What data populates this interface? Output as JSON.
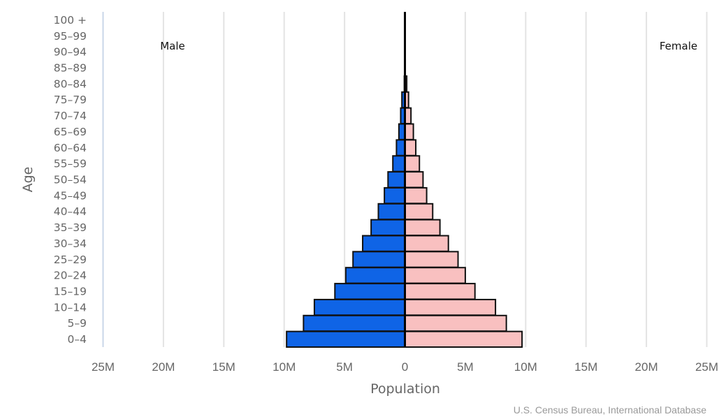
{
  "chart_data": {
    "type": "bar",
    "orientation": "horizontal",
    "subtype": "population-pyramid",
    "categories": [
      "0-4",
      "5-9",
      "10-14",
      "15-19",
      "20-24",
      "25-29",
      "30-34",
      "35-39",
      "40-44",
      "45-49",
      "50-54",
      "55-59",
      "60-64",
      "65-69",
      "70-74",
      "75-79",
      "80-84",
      "85-89",
      "90-94",
      "95-99",
      "100 +"
    ],
    "series": [
      {
        "name": "Male",
        "color": "#0f64e6",
        "values": [
          9.8,
          8.4,
          7.5,
          5.8,
          4.9,
          4.3,
          3.5,
          2.8,
          2.2,
          1.7,
          1.4,
          1.0,
          0.7,
          0.5,
          0.35,
          0.25,
          0.05,
          0.02,
          0.01,
          0.0,
          0.0
        ]
      },
      {
        "name": "Female",
        "color": "#f9c0c0",
        "values": [
          9.7,
          8.4,
          7.5,
          5.8,
          5.0,
          4.4,
          3.6,
          2.9,
          2.3,
          1.8,
          1.5,
          1.2,
          0.9,
          0.7,
          0.5,
          0.3,
          0.15,
          0.03,
          0.01,
          0.0,
          0.0
        ]
      }
    ],
    "value_unit": "millions",
    "xlabel": "Population",
    "ylabel": "Age",
    "xlim": [
      -25,
      25
    ],
    "x_ticks": [
      -25,
      -20,
      -15,
      -10,
      -5,
      0,
      5,
      10,
      15,
      20,
      25
    ],
    "x_tick_labels": [
      "25M",
      "20M",
      "15M",
      "10M",
      "5M",
      "0",
      "5M",
      "10M",
      "15M",
      "20M",
      "25M"
    ],
    "side_labels": {
      "left": "Male",
      "right": "Female"
    },
    "grid": true,
    "credit": "U.S. Census Bureau, International Database"
  }
}
